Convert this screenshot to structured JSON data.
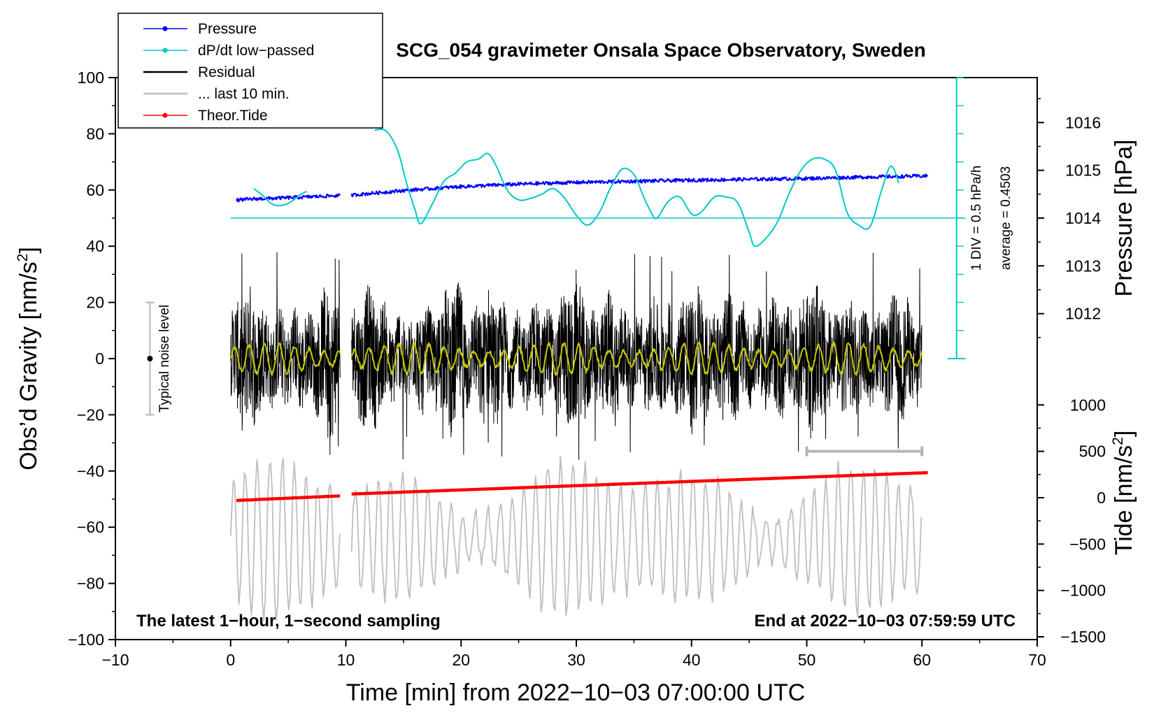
{
  "chart_data": {
    "type": "line",
    "title": "SCG_054 gravimeter Onsala Space Observatory, Sweden",
    "xlabel": "Time [min] from 2022−10−03 07:00:00 UTC",
    "ylabel": "Obs’d Gravity [nm/s²]",
    "ylabel_main": "Obs’d Gravity [nm/s",
    "ylabel_sup": "2",
    "ylabel_close": "]",
    "xlim": [
      -10,
      70
    ],
    "ylim": [
      -100,
      100
    ],
    "x_ticks": [
      -10,
      0,
      10,
      20,
      30,
      40,
      50,
      60,
      70
    ],
    "x_tick_labels": [
      "−10",
      "0",
      "10",
      "20",
      "30",
      "40",
      "50",
      "60",
      "70"
    ],
    "y_ticks": [
      -100,
      -80,
      -60,
      -40,
      -20,
      0,
      20,
      40,
      60,
      80,
      100
    ],
    "y_tick_labels": [
      "−100",
      "−80",
      "−60",
      "−40",
      "−20",
      "0",
      "20",
      "40",
      "60",
      "80",
      "100"
    ],
    "pressure_axis": {
      "label": "Pressure [hPa]",
      "ticks": [
        1012,
        1013,
        1014,
        1015,
        1016
      ],
      "tick_labels": [
        "1012",
        "1013",
        "1014",
        "1015",
        "1016"
      ],
      "gravity_at_1014": 50,
      "gravity_per_hpa": 17
    },
    "tide_axis": {
      "label_main": "Tide [nm/s",
      "label_sup": "2",
      "label_close": "]",
      "ticks": [
        -1500,
        -1000,
        -500,
        0,
        500,
        1000
      ],
      "tick_labels": [
        "−1500",
        "−1000",
        "−500",
        "0",
        "500",
        "1000"
      ],
      "gravity_at_0": -49.5,
      "gravity_per_1000": 33
    },
    "dpdt_scale": {
      "label": "1 DIV = 0.5 hPa/h",
      "average_label": "average = 0.4503",
      "x": 63,
      "bottom_gravity": 0,
      "top_gravity": 100,
      "baseline_gravity": 50
    },
    "noise_bar": {
      "label": "Typical noise level",
      "x": -7,
      "center": 0,
      "low": -20,
      "high": 20
    },
    "last10_marker": {
      "x_start": 50,
      "x_end": 60,
      "y": -33
    },
    "annotations": {
      "left": "The latest 1−hour, 1−second sampling",
      "right": "End at 2022−10−03 07:59:59 UTC"
    },
    "legend": [
      {
        "label": "Pressure",
        "color": "#0000ff",
        "marker": true
      },
      {
        "label": "dP/dt low−passed",
        "color": "#00c8c8",
        "marker": true
      },
      {
        "label": "Residual",
        "color": "#000000",
        "marker": false
      },
      {
        "label": "... last 10 min.",
        "color": "#bebebe",
        "marker": false
      },
      {
        "label": "Theor.Tide",
        "color": "#ff0000",
        "marker": true
      }
    ],
    "series": [
      {
        "name": "Pressure",
        "color": "#0000ff",
        "unit": "gravity-scaled",
        "segments": [
          {
            "x": [
              0.5,
              2,
              4,
              6,
              8,
              9.5
            ],
            "y": [
              56.4,
              56.8,
              57.1,
              57.4,
              57.8,
              58.0
            ]
          },
          {
            "x": [
              10.5,
              15,
              20,
              25,
              30,
              35,
              40,
              45,
              50,
              55,
              60.5
            ],
            "y": [
              58.2,
              59.8,
              61.2,
              62.1,
              62.7,
              63.1,
              63.5,
              63.8,
              64.1,
              64.6,
              65.0
            ]
          }
        ]
      },
      {
        "name": "dP/dt low−passed",
        "color": "#00c8c8",
        "unit": "gravity-scaled",
        "segments": [
          {
            "x": [
              2,
              2.8,
              3.6,
              4.4,
              5.2,
              6.0,
              6.6
            ],
            "y": [
              60.5,
              58.0,
              55.0,
              54.5,
              55.7,
              58.2,
              59.5
            ]
          },
          {
            "x": [
              12.5,
              13.5,
              14.5,
              15.3,
              16.0,
              16.5,
              17.5,
              18.5,
              19.5,
              20.5,
              21.5,
              22.3,
              23.0,
              24.0,
              25.0,
              26.0,
              27.0,
              28.0,
              29.0,
              30.0,
              31.0,
              32.0,
              33.0,
              34.0,
              35.0,
              35.8,
              36.5,
              37.0,
              38.0,
              39.0,
              40.0,
              40.8,
              42.0,
              43.0,
              44.0,
              45.0,
              45.5,
              46.5,
              47.5,
              48.5,
              49.5,
              50.5,
              51.5,
              52.5,
              53.5,
              54.5,
              55.5,
              56.5,
              57.3,
              58.0
            ],
            "y": [
              81.3,
              81.0,
              74.0,
              62.0,
              53.0,
              48.0,
              55.0,
              63.0,
              66.0,
              70.0,
              71.0,
              73.0,
              69.0,
              60.0,
              56.5,
              57.0,
              58.5,
              60.5,
              57.0,
              51.0,
              47.5,
              52.0,
              61.0,
              67.5,
              65.5,
              58.0,
              52.0,
              50.0,
              56.0,
              57.5,
              51.5,
              52.0,
              57.5,
              57.5,
              55.5,
              45.0,
              40.0,
              43.0,
              49.0,
              59.0,
              67.0,
              71.0,
              71.0,
              67.0,
              52.0,
              47.5,
              47.0,
              60.0,
              68.5,
              62.5
            ]
          }
        ]
      },
      {
        "name": "Residual",
        "color": "#000000",
        "unit": "nm/s2",
        "rendering": "dense 1−second trace",
        "typical_range": [
          -25,
          25
        ],
        "extremes": [
          -36,
          38
        ],
        "segments": [
          {
            "x_range": [
              0,
              9.5
            ]
          },
          {
            "x_range": [
              10.5,
              60
            ]
          }
        ]
      },
      {
        "name": "Residual (smoothed)",
        "color": "#c8c800",
        "unit": "nm/s2",
        "rendering": "oscillation",
        "amplitude": 5,
        "period_min": 1.3,
        "segments": [
          {
            "x_range": [
              0,
              9.5
            ]
          },
          {
            "x_range": [
              10.5,
              60
            ]
          }
        ]
      },
      {
        "name": "... last 10 min.",
        "color": "#bebebe",
        "unit": "nm/s2 (display offset)",
        "rendering": "oscillation",
        "center": -64,
        "amplitude_range": [
          8,
          30
        ],
        "extremes": [
          -93,
          -26
        ],
        "segments": [
          {
            "x_range": [
              0,
              9.5
            ]
          },
          {
            "x_range": [
              10.5,
              60
            ]
          }
        ]
      },
      {
        "name": "Theor.Tide",
        "color": "#ff0000",
        "unit": "nm/s2 (tide axis)",
        "segments": [
          {
            "x": [
              0.5,
              9.6
            ],
            "tide": [
              -30,
              20
            ]
          },
          {
            "x": [
              10.5,
              60.5
            ],
            "tide": [
              40,
              270
            ]
          }
        ]
      }
    ]
  }
}
